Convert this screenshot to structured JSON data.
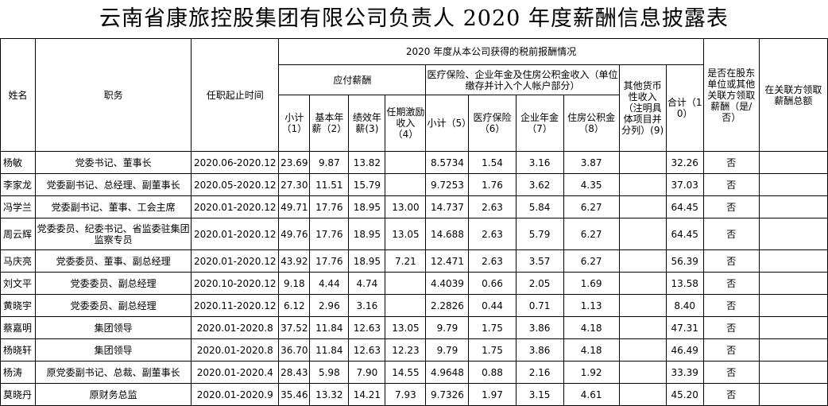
{
  "title": "云南省康旅控股集团有限公司负责人 2020 年度薪酬信息披露表",
  "headers": {
    "name": "姓名",
    "position": "职务",
    "period": "任职起止时间",
    "pretax_group": "2020 年度从本公司获得的税前报酬情况",
    "payable_salary": "应付薪酬",
    "insurance_group": "医疗保险、企业年金及住房公积金收入（单位缴存并计入个人帐户部分）",
    "other_income": "其他货币性收入（注明具体项目并分列）(9)",
    "total": "合计（10）",
    "shareholder_pay": "是否在股东单位或其他关联方领取薪酬（是/否）",
    "related_total": "在关联方领取薪酬总额",
    "subtotal": "小计（1）",
    "basic": "基本年薪（2）",
    "performance": "绩效年薪(3)",
    "incentive": "任期激励收入（4）",
    "subtotal5": "小计（5）",
    "medical": "医疗保险（6）",
    "annuity": "企业年金（7）",
    "housing": "住房公积金（8）"
  },
  "rows": [
    {
      "name": "杨敏",
      "position": "党委书记、董事长",
      "period": "2020.06-2020.12",
      "c1": "23.69",
      "c2": "9.87",
      "c3": "13.82",
      "c4": "",
      "c5": "8.5734",
      "c6": "1.54",
      "c7": "3.16",
      "c8": "3.87",
      "c9": "",
      "c10": "32.26",
      "yn": "否",
      "rel": ""
    },
    {
      "name": "李家龙",
      "position": "党委副书记、总经理、副董事长",
      "period": "2020.05-2020.12",
      "c1": "27.30",
      "c2": "11.51",
      "c3": "15.79",
      "c4": "",
      "c5": "9.7253",
      "c6": "1.76",
      "c7": "3.62",
      "c8": "4.35",
      "c9": "",
      "c10": "37.03",
      "yn": "否",
      "rel": ""
    },
    {
      "name": "冯学兰",
      "position": "党委副书记、董事、工会主席",
      "period": "2020.01-2020.12",
      "c1": "49.71",
      "c2": "17.76",
      "c3": "18.95",
      "c4": "13.00",
      "c5": "14.737",
      "c6": "2.63",
      "c7": "5.84",
      "c8": "6.27",
      "c9": "",
      "c10": "64.45",
      "yn": "否",
      "rel": ""
    },
    {
      "name": "周云辉",
      "position": "党委委员、纪委书记、省监委驻集团监察专员",
      "period": "2020.01-2020.12",
      "c1": "49.76",
      "c2": "17.76",
      "c3": "18.95",
      "c4": "13.05",
      "c5": "14.688",
      "c6": "2.63",
      "c7": "5.79",
      "c8": "6.27",
      "c9": "",
      "c10": "64.45",
      "yn": "否",
      "rel": ""
    },
    {
      "name": "马庆亮",
      "position": "党委委员、董事、副总经理",
      "period": "2020.01-2020.12",
      "c1": "43.92",
      "c2": "17.76",
      "c3": "18.95",
      "c4": "7.21",
      "c5": "12.471",
      "c6": "2.63",
      "c7": "3.57",
      "c8": "6.27",
      "c9": "",
      "c10": "56.39",
      "yn": "否",
      "rel": ""
    },
    {
      "name": "刘文平",
      "position": "党委委员、副总经理",
      "period": "2020.10-2020.12",
      "c1": "9.18",
      "c2": "4.44",
      "c3": "4.74",
      "c4": "",
      "c5": "4.4039",
      "c6": "0.66",
      "c7": "2.05",
      "c8": "1.69",
      "c9": "",
      "c10": "13.58",
      "yn": "否",
      "rel": ""
    },
    {
      "name": "黄晓宇",
      "position": "党委委员、副总经理",
      "period": "2020.11-2020.12",
      "c1": "6.12",
      "c2": "2.96",
      "c3": "3.16",
      "c4": "",
      "c5": "2.2826",
      "c6": "0.44",
      "c7": "0.71",
      "c8": "1.13",
      "c9": "",
      "c10": "8.40",
      "yn": "否",
      "rel": ""
    },
    {
      "name": "蔡嘉明",
      "position": "集团领导",
      "period": "2020.01-2020.8",
      "c1": "37.52",
      "c2": "11.84",
      "c3": "12.63",
      "c4": "13.05",
      "c5": "9.79",
      "c6": "1.75",
      "c7": "3.86",
      "c8": "4.18",
      "c9": "",
      "c10": "47.31",
      "yn": "否",
      "rel": ""
    },
    {
      "name": "杨晓轩",
      "position": "集团领导",
      "period": "2020.01-2020.8",
      "c1": "36.70",
      "c2": "11.84",
      "c3": "12.63",
      "c4": "12.23",
      "c5": "9.79",
      "c6": "1.75",
      "c7": "3.86",
      "c8": "4.18",
      "c9": "",
      "c10": "46.49",
      "yn": "否",
      "rel": ""
    },
    {
      "name": "杨涛",
      "position": "原党委副书记、总裁、副董事长",
      "period": "2020.01-2020.4",
      "c1": "28.43",
      "c2": "5.98",
      "c3": "7.90",
      "c4": "14.55",
      "c5": "4.9648",
      "c6": "0.88",
      "c7": "2.16",
      "c8": "1.92",
      "c9": "",
      "c10": "33.39",
      "yn": "否",
      "rel": ""
    },
    {
      "name": "莫晓丹",
      "position": "原财务总监",
      "period": "2020.01-2020.9",
      "c1": "35.46",
      "c2": "13.32",
      "c3": "14.21",
      "c4": "7.93",
      "c5": "9.7326",
      "c6": "1.97",
      "c7": "3.15",
      "c8": "4.61",
      "c9": "",
      "c10": "45.20",
      "yn": "否",
      "rel": ""
    }
  ]
}
